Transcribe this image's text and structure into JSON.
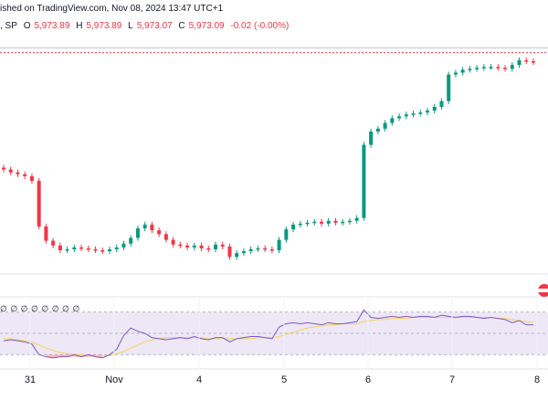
{
  "header": {
    "line1": "ished on TradingView.com, Nov 08, 2024 13:47 UTC+1",
    "symbol_fragment": ", SP",
    "open_label": "O",
    "open_value": "5,973.89",
    "high_label": "H",
    "high_value": "5,973.89",
    "low_label": "L",
    "low_value": "5,973.07",
    "close_label": "C",
    "close_value": "5,973.09",
    "change_value": "-0.02 (-0.00%)"
  },
  "rsi_legend": "∅ ∅ ∅ ∅ ∅ ∅ ∅ ∅",
  "colors": {
    "up": "#089981",
    "down": "#f23645",
    "rsi_line": "#7e57c2",
    "rsi_ma": "#f7d35c",
    "rsi_band": "#ede7f6",
    "price_line": "#f23645",
    "grid": "#e0e3eb"
  },
  "chart_data": {
    "type": "candlestick",
    "x_ticks": [
      "31",
      "Nov",
      "4",
      "5",
      "6",
      "7",
      "8"
    ],
    "price_panel": {
      "current_price_line": 5973.09,
      "high_reference": 5978
    },
    "candles_close": [
      5850,
      5847,
      5845,
      5843,
      5838,
      5790,
      5775,
      5770,
      5765,
      5766,
      5768,
      5767,
      5766,
      5765,
      5764,
      5766,
      5768,
      5772,
      5778,
      5788,
      5792,
      5786,
      5782,
      5776,
      5771,
      5770,
      5768,
      5770,
      5767,
      5766,
      5771,
      5769,
      5758,
      5762,
      5764,
      5766,
      5767,
      5766,
      5765,
      5776,
      5787,
      5792,
      5793,
      5794,
      5795,
      5793,
      5796,
      5794,
      5795,
      5796,
      5799,
      5876,
      5890,
      5893,
      5899,
      5904,
      5906,
      5908,
      5909,
      5910,
      5912,
      5916,
      5922,
      5950,
      5952,
      5955,
      5956,
      5957,
      5958,
      5958,
      5957,
      5956,
      5960,
      5965,
      5964,
      5963
    ],
    "rsi": {
      "values": [
        43,
        44,
        43,
        42,
        40,
        30,
        28,
        27,
        28,
        28,
        30,
        28,
        30,
        28,
        27,
        30,
        35,
        48,
        55,
        52,
        50,
        46,
        45,
        44,
        45,
        46,
        45,
        47,
        45,
        44,
        46,
        46,
        42,
        45,
        46,
        47,
        47,
        46,
        45,
        56,
        59,
        60,
        59,
        60,
        59,
        58,
        60,
        59,
        59,
        60,
        61,
        72,
        65,
        64,
        65,
        66,
        65,
        66,
        65,
        66,
        66,
        65,
        67,
        66,
        65,
        66,
        66,
        65,
        64,
        65,
        64,
        63,
        60,
        62,
        58,
        58
      ],
      "ma": [
        45,
        45,
        44,
        43,
        42,
        39,
        36,
        34,
        32,
        31,
        30,
        30,
        29,
        29,
        29,
        29,
        31,
        33,
        36,
        39,
        42,
        44,
        45,
        46,
        46,
        46,
        46,
        46,
        46,
        45,
        45,
        45,
        45,
        45,
        45,
        45,
        46,
        46,
        46,
        47,
        49,
        51,
        53,
        55,
        56,
        57,
        58,
        58,
        59,
        59,
        59,
        61,
        62,
        63,
        63,
        64,
        64,
        64,
        65,
        65,
        65,
        65,
        65,
        65,
        65,
        65,
        65,
        65,
        65,
        65,
        64,
        64,
        63,
        62,
        61,
        60
      ],
      "band": [
        30,
        70
      ],
      "mid": 50
    }
  }
}
